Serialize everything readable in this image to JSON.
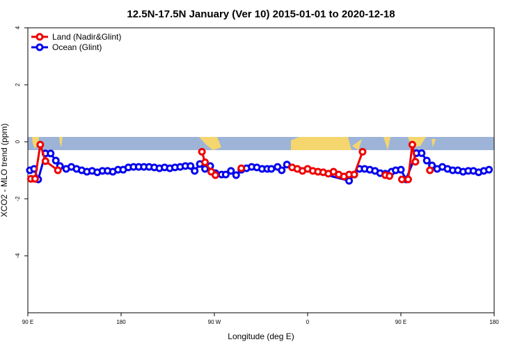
{
  "chart_data": {
    "type": "line",
    "title": "12.5N-17.5N January (Ver 10)   2015-01-01 to 2020-12-18",
    "xlabel": "Longitude (deg E)",
    "ylabel": "XCO2 - MLO trend (ppm)",
    "xlim": [
      90,
      540
    ],
    "ylim": [
      -6,
      4
    ],
    "xticks": [
      {
        "value": 90,
        "label": "90 E"
      },
      180,
      {
        "value": 270,
        "label": "90 W"
      },
      {
        "value": 360,
        "label": "0"
      },
      {
        "value": 450,
        "label": "90 E"
      },
      {
        "value": 540,
        "label": "180"
      }
    ],
    "yticks": [
      -4,
      -2,
      0,
      2,
      4
    ],
    "legend": "top-left",
    "series": [
      {
        "name": "Land (Nadir&Glint)",
        "color": "#ee0000",
        "x": [
          93,
          97,
          102,
          107,
          119,
          200,
          258,
          261,
          267,
          271,
          283,
          296,
          320,
          345,
          350,
          355,
          360,
          365,
          370,
          375,
          380,
          385,
          390,
          395,
          400,
          405,
          413,
          424,
          435,
          439,
          445,
          451,
          457,
          461,
          464,
          471,
          478
        ],
        "values": [
          -1.3,
          -1.3,
          -0.1,
          -0.68,
          -1.0,
          null,
          -0.35,
          -0.72,
          -1.05,
          -1.17,
          null,
          -0.93,
          null,
          -0.9,
          -0.95,
          -1.02,
          -0.95,
          -1.02,
          -1.05,
          -1.07,
          -1.12,
          -1.05,
          -1.15,
          -1.22,
          -1.15,
          -1.15,
          -0.35,
          null,
          -1.17,
          -1.2,
          null,
          -1.32,
          -1.32,
          -0.1,
          -0.7,
          null,
          -1.0
        ]
      },
      {
        "name": "Ocean (Glint)",
        "color": "#0000ee",
        "x": [
          92,
          96,
          100,
          107,
          112,
          117,
          121,
          127,
          132,
          137,
          142,
          147,
          152,
          157,
          162,
          167,
          172,
          177,
          182,
          187,
          192,
          197,
          202,
          207,
          212,
          217,
          222,
          227,
          232,
          237,
          242,
          247,
          251,
          256,
          261,
          266,
          271,
          277,
          281,
          286,
          291,
          296,
          301,
          306,
          311,
          316,
          321,
          325,
          331,
          335,
          340,
          400,
          405,
          410,
          415,
          420,
          425,
          430,
          435,
          441,
          445,
          450,
          455,
          465,
          470,
          475,
          480,
          485,
          490,
          495,
          500,
          505,
          510,
          515,
          520,
          525,
          530,
          535
        ],
        "values": [
          -1.0,
          -0.95,
          -1.32,
          -0.41,
          -0.41,
          -0.66,
          -0.85,
          -0.95,
          -0.88,
          -0.95,
          -1.0,
          -1.05,
          -1.02,
          -1.07,
          -1.02,
          -1.02,
          -1.05,
          -0.98,
          -0.98,
          -0.9,
          -0.88,
          -0.88,
          -0.88,
          -0.88,
          -0.9,
          -0.93,
          -0.9,
          -0.93,
          -0.9,
          -0.88,
          -0.85,
          -0.85,
          -1.02,
          -0.78,
          -0.95,
          -0.85,
          -1.1,
          -1.15,
          -1.15,
          -1.02,
          -1.17,
          -0.98,
          -0.93,
          -0.88,
          -0.9,
          -0.95,
          -0.95,
          -0.95,
          -0.88,
          -1.0,
          -0.8,
          -1.37,
          -1.15,
          -0.95,
          -0.95,
          -0.98,
          -1.02,
          -1.1,
          -1.12,
          -1.05,
          -1.0,
          -0.98,
          -1.32,
          -0.4,
          -0.4,
          -0.66,
          -0.83,
          -0.95,
          -0.88,
          -0.95,
          -1.0,
          -1.0,
          -1.05,
          -1.02,
          -1.02,
          -1.07,
          -1.02,
          -0.98
        ]
      }
    ]
  }
}
